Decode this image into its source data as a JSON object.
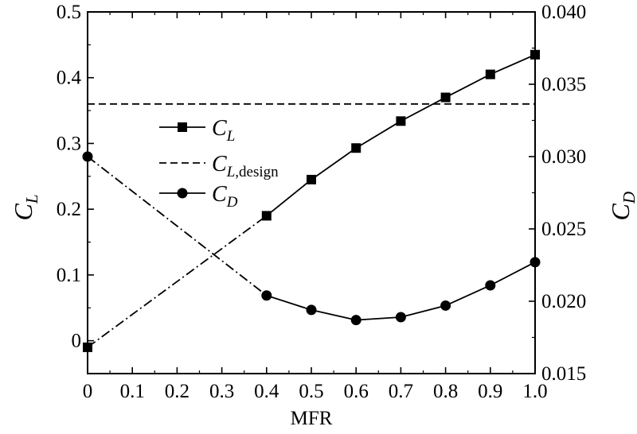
{
  "chart_data": {
    "type": "line",
    "xlabel": "MFR",
    "x_ticks": [
      "0",
      "0.1",
      "0.2",
      "0.3",
      "0.4",
      "0.5",
      "0.6",
      "0.7",
      "0.8",
      "0.9",
      "1.0"
    ],
    "xlim": [
      0,
      1.0
    ],
    "y_left": {
      "label_main": "C",
      "label_sub": "L",
      "ylim": [
        -0.05,
        0.5
      ],
      "ticks": [
        "0",
        "0.1",
        "0.2",
        "0.3",
        "0.4",
        "0.5"
      ]
    },
    "y_right": {
      "label_main": "C",
      "label_sub": "D",
      "ylim": [
        0.015,
        0.04
      ],
      "ticks": [
        "0.015",
        "0.020",
        "0.025",
        "0.030",
        "0.035",
        "0.040"
      ]
    },
    "series": [
      {
        "name_main": "C",
        "name_sub": "L",
        "axis": "left",
        "marker": "square",
        "x": [
          0,
          0.4,
          0.5,
          0.6,
          0.7,
          0.8,
          0.9,
          1.0
        ],
        "y": [
          -0.01,
          0.19,
          0.245,
          0.293,
          0.334,
          0.37,
          0.405,
          0.435
        ],
        "dashed_segments": [
          0
        ]
      },
      {
        "name_main": "C",
        "name_sub": "L,design",
        "axis": "left",
        "marker": "none",
        "style": "dashed",
        "x": [
          0,
          1.0
        ],
        "y": [
          0.36,
          0.36
        ]
      },
      {
        "name_main": "C",
        "name_sub": "D",
        "axis": "right",
        "marker": "circle",
        "x": [
          0,
          0.4,
          0.5,
          0.6,
          0.7,
          0.8,
          0.9,
          1.0
        ],
        "y": [
          0.03,
          0.0204,
          0.0194,
          0.0187,
          0.0189,
          0.0197,
          0.0211,
          0.0227
        ],
        "dashed_segments": [
          0
        ]
      }
    ],
    "legend_position": "upper-left-center"
  }
}
